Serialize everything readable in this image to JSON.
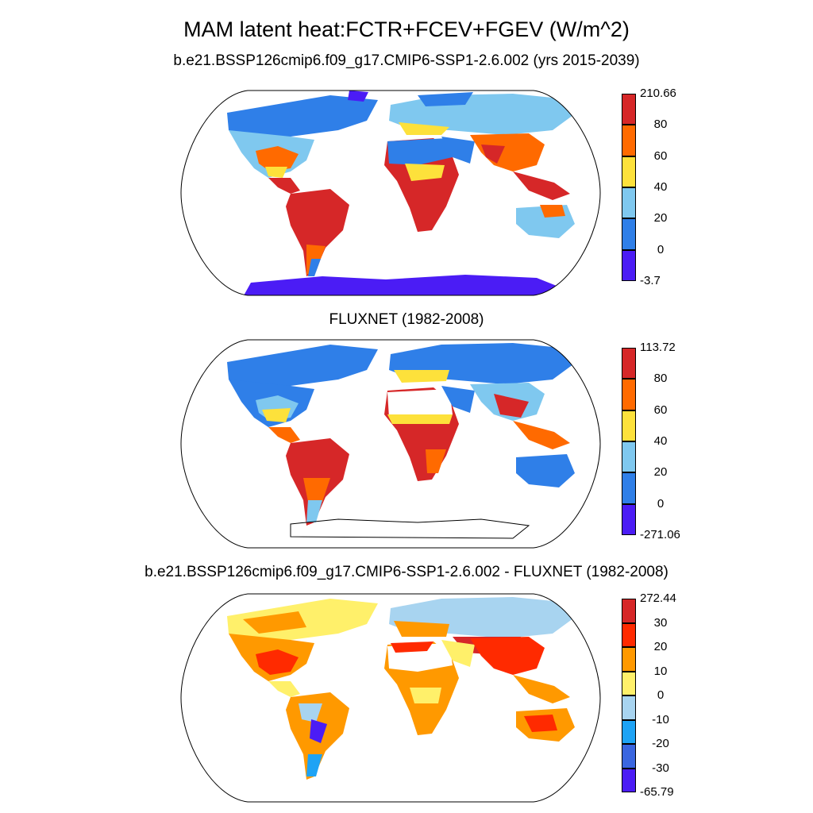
{
  "title": "MAM latent heat:FCTR+FCEV+FGEV (W/m^2)",
  "panels": [
    {
      "title": "b.e21.BSSP126cmip6.f09_g17.CMIP6-SSP1-2.6.002 (yrs 2015-2039)",
      "colorbar": {
        "max_label": "210.66",
        "min_label": "-3.7",
        "levels": [
          "80",
          "60",
          "40",
          "20",
          "0"
        ],
        "colors": [
          "#d62728",
          "#ff6a00",
          "#fde13b",
          "#7fc8ef",
          "#2f7fe8",
          "#4b1cf5"
        ]
      }
    },
    {
      "title": "FLUXNET (1982-2008)",
      "colorbar": {
        "max_label": "113.72",
        "min_label": "-271.06",
        "levels": [
          "80",
          "60",
          "40",
          "20",
          "0"
        ],
        "colors": [
          "#d62728",
          "#ff6a00",
          "#fde13b",
          "#7fc8ef",
          "#2f7fe8",
          "#4b1cf5"
        ]
      }
    },
    {
      "title": "b.e21.BSSP126cmip6.f09_g17.CMIP6-SSP1-2.6.002 - FLUXNET (1982-2008)",
      "colorbar": {
        "max_label": "272.44",
        "min_label": "-65.79",
        "levels": [
          "30",
          "20",
          "10",
          "0",
          "-10",
          "-20",
          "-30"
        ],
        "colors": [
          "#d62728",
          "#ff2a00",
          "#ff9900",
          "#fff06a",
          "#a8d4f0",
          "#1ea3f5",
          "#3a66e0",
          "#4b1cf5"
        ]
      }
    }
  ]
}
